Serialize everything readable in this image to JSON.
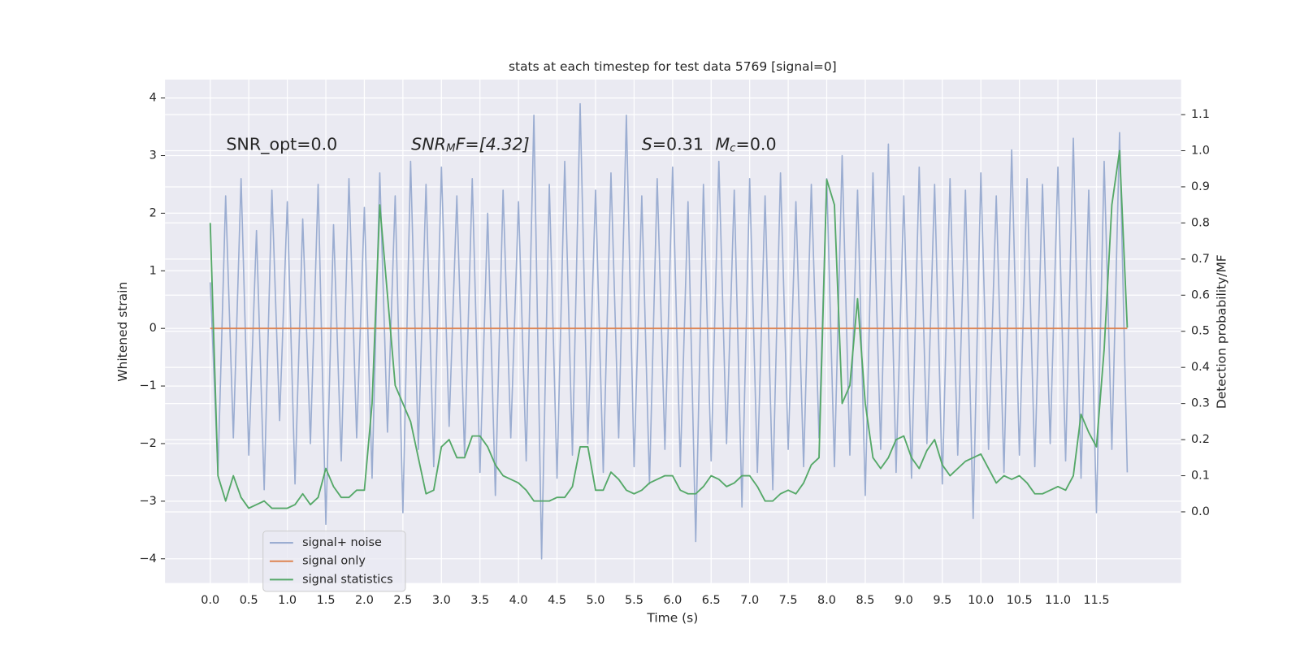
{
  "chart_data": {
    "type": "line",
    "title": "stats at each timestep for test data 5769 [signal=0]",
    "xlabel": "Time (s)",
    "ylabel": "Whitened strain",
    "y2label": "Detection probability/MF",
    "annotations": [
      {
        "text": "SNR_opt=0.0"
      },
      {
        "parts": [
          "SNR",
          "M",
          "F=[4.32]"
        ]
      },
      {
        "parts": [
          "S",
          "=0.31",
          "M",
          "c",
          "=0.0"
        ]
      }
    ],
    "x": [
      0,
      0.1,
      0.2,
      0.3,
      0.4,
      0.5,
      0.6,
      0.7,
      0.8,
      0.9,
      1,
      1.1,
      1.2,
      1.3,
      1.4,
      1.5,
      1.6,
      1.7,
      1.8,
      1.9,
      2,
      2.1,
      2.2,
      2.3,
      2.4,
      2.5,
      2.6,
      2.7,
      2.8,
      2.9,
      3,
      3.1,
      3.2,
      3.3,
      3.4,
      3.5,
      3.6,
      3.7,
      3.8,
      3.9,
      4,
      4.1,
      4.2,
      4.3,
      4.4,
      4.5,
      4.6,
      4.7,
      4.8,
      4.9,
      5,
      5.1,
      5.2,
      5.3,
      5.4,
      5.5,
      5.6,
      5.7,
      5.8,
      5.9,
      6,
      6.1,
      6.2,
      6.3,
      6.4,
      6.5,
      6.6,
      6.7,
      6.8,
      6.9,
      7,
      7.1,
      7.2,
      7.3,
      7.4,
      7.5,
      7.6,
      7.7,
      7.8,
      7.9,
      8,
      8.1,
      8.2,
      8.3,
      8.4,
      8.5,
      8.6,
      8.7,
      8.8,
      8.9,
      9,
      9.1,
      9.2,
      9.3,
      9.4,
      9.5,
      9.6,
      9.7,
      9.8,
      9.9,
      10,
      10.1,
      10.2,
      10.3,
      10.4,
      10.5,
      10.6,
      10.7,
      10.8,
      10.9,
      11,
      11.1,
      11.2,
      11.3,
      11.4,
      11.5,
      11.6,
      11.7,
      11.8,
      11.9
    ],
    "series": [
      {
        "name": "signal+ noise",
        "color": "#9badd1",
        "axis": "y",
        "values": [
          0.8,
          -2.5,
          2.3,
          -1.9,
          2.6,
          -2.2,
          1.7,
          -2.8,
          2.4,
          -1.6,
          2.2,
          -2.7,
          1.9,
          -2.0,
          2.5,
          -3.4,
          1.8,
          -2.3,
          2.6,
          -1.9,
          2.1,
          -2.6,
          2.7,
          -1.8,
          2.3,
          -3.2,
          2.9,
          -2.1,
          2.5,
          -2.4,
          2.8,
          -1.7,
          2.3,
          -2.2,
          2.6,
          -2.5,
          2.0,
          -2.9,
          2.4,
          -1.9,
          2.2,
          -2.3,
          3.7,
          -4.0,
          2.5,
          -2.6,
          2.9,
          -2.2,
          3.9,
          -2.0,
          2.4,
          -2.5,
          2.7,
          -1.9,
          3.7,
          -2.4,
          2.3,
          -2.7,
          2.6,
          -2.1,
          2.8,
          -2.4,
          2.2,
          -3.7,
          2.5,
          -2.3,
          2.9,
          -2.0,
          2.4,
          -3.1,
          2.6,
          -2.5,
          2.3,
          -2.8,
          2.7,
          -2.1,
          2.2,
          -2.4,
          2.5,
          -1.9,
          2.6,
          -2.4,
          3.0,
          -2.2,
          2.4,
          -2.9,
          2.7,
          -2.1,
          3.2,
          -2.5,
          2.3,
          -2.6,
          2.8,
          -2.0,
          2.5,
          -2.7,
          2.6,
          -2.2,
          2.4,
          -3.3,
          2.7,
          -2.1,
          2.3,
          -2.5,
          3.1,
          -2.2,
          2.6,
          -2.4,
          2.5,
          -2.0,
          2.8,
          -2.3,
          3.3,
          -2.6,
          2.4,
          -3.2,
          2.9,
          -2.1,
          3.4,
          -2.5
        ]
      },
      {
        "name": "signal only",
        "color": "#dd8452",
        "axis": "y",
        "values": [
          0,
          0,
          0,
          0,
          0,
          0,
          0,
          0,
          0,
          0,
          0,
          0,
          0,
          0,
          0,
          0,
          0,
          0,
          0,
          0,
          0,
          0,
          0,
          0,
          0,
          0,
          0,
          0,
          0,
          0,
          0,
          0,
          0,
          0,
          0,
          0,
          0,
          0,
          0,
          0,
          0,
          0,
          0,
          0,
          0,
          0,
          0,
          0,
          0,
          0,
          0,
          0,
          0,
          0,
          0,
          0,
          0,
          0,
          0,
          0,
          0,
          0,
          0,
          0,
          0,
          0,
          0,
          0,
          0,
          0,
          0,
          0,
          0,
          0,
          0,
          0,
          0,
          0,
          0,
          0,
          0,
          0,
          0,
          0,
          0,
          0,
          0,
          0,
          0,
          0,
          0,
          0,
          0,
          0,
          0,
          0,
          0,
          0,
          0,
          0,
          0,
          0,
          0,
          0,
          0,
          0,
          0,
          0,
          0,
          0,
          0,
          0,
          0,
          0,
          0,
          0,
          0,
          0,
          0,
          0
        ]
      },
      {
        "name": "signal statistics",
        "color": "#55a868",
        "axis": "y2",
        "values": [
          0.8,
          0.1,
          0.03,
          0.1,
          0.04,
          0.01,
          0.02,
          0.03,
          0.01,
          0.01,
          0.01,
          0.02,
          0.05,
          0.02,
          0.04,
          0.12,
          0.07,
          0.04,
          0.04,
          0.06,
          0.06,
          0.3,
          0.85,
          0.6,
          0.35,
          0.3,
          0.25,
          0.15,
          0.05,
          0.06,
          0.18,
          0.2,
          0.15,
          0.15,
          0.21,
          0.21,
          0.18,
          0.13,
          0.1,
          0.09,
          0.08,
          0.06,
          0.03,
          0.03,
          0.03,
          0.04,
          0.04,
          0.07,
          0.18,
          0.18,
          0.06,
          0.06,
          0.11,
          0.09,
          0.06,
          0.05,
          0.06,
          0.08,
          0.09,
          0.1,
          0.1,
          0.06,
          0.05,
          0.05,
          0.07,
          0.1,
          0.09,
          0.07,
          0.08,
          0.1,
          0.1,
          0.07,
          0.03,
          0.03,
          0.05,
          0.06,
          0.05,
          0.08,
          0.13,
          0.15,
          0.92,
          0.85,
          0.3,
          0.35,
          0.59,
          0.3,
          0.15,
          0.12,
          0.15,
          0.2,
          0.21,
          0.15,
          0.12,
          0.17,
          0.2,
          0.13,
          0.1,
          0.12,
          0.14,
          0.15,
          0.16,
          0.12,
          0.08,
          0.1,
          0.09,
          0.1,
          0.08,
          0.05,
          0.05,
          0.06,
          0.07,
          0.06,
          0.1,
          0.27,
          0.22,
          0.18,
          0.45,
          0.85,
          1.0,
          0.51
        ]
      }
    ],
    "xlim": [
      -0.587,
      12.598
    ],
    "xticks": [
      {
        "value": 0,
        "label": "0.0"
      },
      0.5,
      {
        "value": 1,
        "label": "1.0"
      },
      1.5,
      {
        "value": 2,
        "label": "2.0"
      },
      2.5,
      {
        "value": 3,
        "label": "3.0"
      },
      3.5,
      {
        "value": 4,
        "label": "4.0"
      },
      4.5,
      {
        "value": 5,
        "label": "5.0"
      },
      5.5,
      {
        "value": 6,
        "label": "6.0"
      },
      6.5,
      {
        "value": 7,
        "label": "7.0"
      },
      7.5,
      {
        "value": 8,
        "label": "8.0"
      },
      8.5,
      {
        "value": 9,
        "label": "9.0"
      },
      9.5,
      {
        "value": 10,
        "label": "10.0"
      },
      10.5,
      {
        "value": 11,
        "label": "11.0"
      },
      11.5
    ],
    "ylim": [
      -4.42,
      4.32
    ],
    "yticks": [
      {
        "value": -4,
        "label": "−4"
      },
      {
        "value": -3,
        "label": "−3"
      },
      {
        "value": -2,
        "label": "−2"
      },
      {
        "value": -1,
        "label": "−1"
      },
      0,
      1,
      2,
      3,
      4
    ],
    "y2lim": [
      -0.197,
      1.197
    ],
    "y2ticks": [
      {
        "value": 0,
        "label": "0.0"
      },
      0.1,
      0.2,
      0.3,
      0.4,
      0.5,
      0.6,
      0.7,
      0.8,
      0.9,
      {
        "value": 1,
        "label": "1.0"
      },
      1.1
    ],
    "grid": true,
    "legend": "lower left"
  }
}
